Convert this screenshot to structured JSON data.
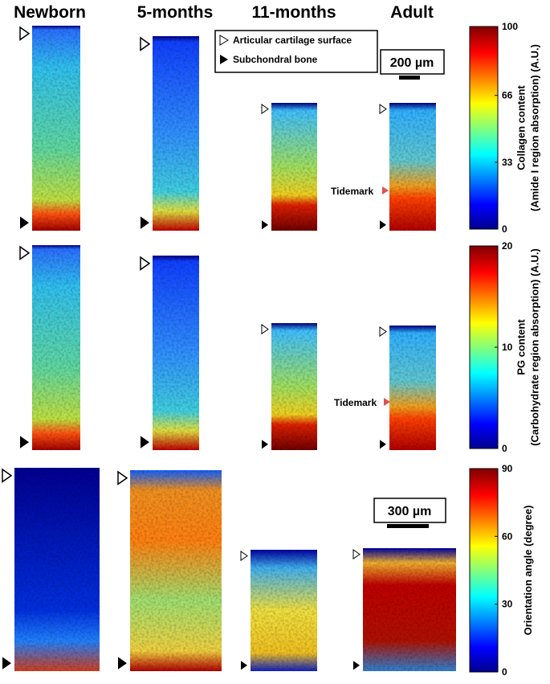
{
  "columns": [
    "Newborn",
    "5-months",
    "11-months",
    "Adult"
  ],
  "legend": {
    "open": "Articular cartilage surface",
    "filled": "Subchondral bone"
  },
  "scale_bars": [
    "200 µm",
    "300 µm"
  ],
  "tidemark_labels": [
    "Tidemark",
    "Tidemark"
  ],
  "colorbars": [
    {
      "label_lines": [
        "Collagen content",
        "(Amide I region absorption) (A.U.)"
      ],
      "ticks": [
        0,
        33,
        66,
        100
      ]
    },
    {
      "label_lines": [
        "PG content",
        "(Carbohydrate region absorption) (A.U.)"
      ],
      "ticks": [
        0,
        10,
        20
      ]
    },
    {
      "label_lines": [
        "Orientation angle (degree)"
      ],
      "ticks": [
        0,
        30,
        60,
        90
      ]
    }
  ]
}
